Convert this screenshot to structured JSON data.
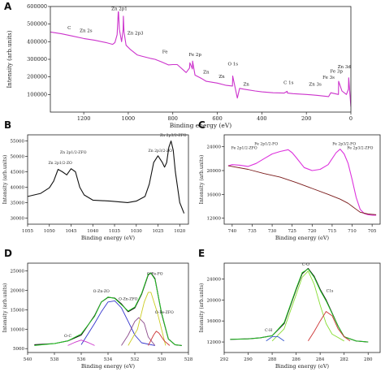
{
  "chart_data": [
    {
      "panel": "A",
      "type": "line",
      "xlabel": "Binding energy (eV)",
      "ylabel": "Intensity (arb.units)",
      "xlim": [
        1350,
        0
      ],
      "ylim": [
        0,
        600000
      ],
      "xticks": [
        1200,
        1000,
        800,
        600,
        400,
        200,
        0
      ],
      "yticks": [
        100000,
        200000,
        300000,
        400000,
        500000,
        600000
      ],
      "color": "#cc33cc",
      "x": [
        1350,
        1300,
        1250,
        1200,
        1150,
        1100,
        1070,
        1060,
        1050,
        1045,
        1044,
        1040,
        1030,
        1023,
        1022,
        1019,
        1010,
        990,
        960,
        940,
        900,
        880,
        850,
        820,
        800,
        780,
        740,
        725,
        723,
        712,
        711,
        700,
        670,
        650,
        600,
        560,
        532,
        531,
        510,
        500,
        480,
        430,
        400,
        350,
        300,
        286,
        285,
        260,
        200,
        150,
        100,
        90,
        56,
        55,
        40,
        20,
        11,
        10,
        0
      ],
      "y": [
        455000,
        445000,
        432000,
        418000,
        408000,
        395000,
        385000,
        395000,
        440000,
        570000,
        570000,
        470000,
        400000,
        470000,
        545000,
        455000,
        380000,
        355000,
        325000,
        318000,
        305000,
        300000,
        285000,
        268000,
        270000,
        270000,
        225000,
        250000,
        280000,
        245000,
        290000,
        210000,
        190000,
        175000,
        165000,
        152000,
        148000,
        205000,
        80000,
        135000,
        130000,
        120000,
        115000,
        110000,
        108000,
        118000,
        108000,
        105000,
        100000,
        95000,
        88000,
        110000,
        100000,
        175000,
        120000,
        100000,
        130000,
        195000,
        30000
      ],
      "annotations": [
        {
          "text": "C",
          "x": 1265,
          "y": 470000
        },
        {
          "text": "Zn 2s",
          "x": 1190,
          "y": 455000
        },
        {
          "text": "Zn 2p1",
          "x": 1040,
          "y": 580000
        },
        {
          "text": "Zn 2p3",
          "x": 968,
          "y": 440000
        },
        {
          "text": "Fe",
          "x": 835,
          "y": 335000
        },
        {
          "text": "Fe 2p",
          "x": 700,
          "y": 318000
        },
        {
          "text": "Zn",
          "x": 650,
          "y": 220000
        },
        {
          "text": "Zn",
          "x": 580,
          "y": 195000
        },
        {
          "text": "O 1s",
          "x": 530,
          "y": 265000
        },
        {
          "text": "Zn",
          "x": 470,
          "y": 150000
        },
        {
          "text": "C 1s",
          "x": 280,
          "y": 160000
        },
        {
          "text": "Zn 3s",
          "x": 160,
          "y": 150000
        },
        {
          "text": "Fe 3s",
          "x": 100,
          "y": 190000
        },
        {
          "text": "Zn 3d",
          "x": 30,
          "y": 250000
        },
        {
          "text": "Fe 3p",
          "x": 65,
          "y": 225000
        }
      ]
    },
    {
      "panel": "B",
      "type": "line",
      "xlabel": "Binding energy (eV)",
      "ylabel": "Intensity (arb.units)",
      "xlim": [
        1055,
        1018
      ],
      "ylim": [
        28000,
        57000
      ],
      "xticks": [
        1055,
        1050,
        1045,
        1040,
        1035,
        1030,
        1025,
        1020
      ],
      "yticks": [
        30000,
        35000,
        40000,
        45000,
        50000,
        55000
      ],
      "color": "#111111",
      "x": [
        1055,
        1052,
        1050,
        1049,
        1048,
        1047,
        1046,
        1045,
        1044,
        1043,
        1042,
        1040,
        1036,
        1032,
        1030,
        1028,
        1027,
        1026,
        1025,
        1024,
        1023.5,
        1023,
        1022.5,
        1022,
        1021.5,
        1021,
        1020,
        1019
      ],
      "y": [
        37000,
        38000,
        39800,
        42000,
        45800,
        45000,
        44000,
        46000,
        45000,
        40000,
        37500,
        35800,
        35500,
        35000,
        35500,
        37000,
        41000,
        48000,
        50200,
        48000,
        46500,
        48000,
        53000,
        55000,
        52000,
        45000,
        35000,
        31500
      ],
      "annotations": [
        {
          "text": "Zn 2p1/2-ZO",
          "x": 1047.5,
          "y": 47500
        },
        {
          "text": "Zn 2p1/2-ZFO",
          "x": 1044.5,
          "y": 51000
        },
        {
          "text": "Zn 2p3/2-ZO",
          "x": 1024.5,
          "y": 51500
        },
        {
          "text": "Zn 2p3/2-ZFO",
          "x": 1021.5,
          "y": 56500
        }
      ]
    },
    {
      "panel": "C",
      "type": "line",
      "xlabel": "Binding energy (eV)",
      "ylabel": "Intensity (arb.units)",
      "xlim": [
        742,
        703
      ],
      "ylim": [
        11000,
        26000
      ],
      "xticks": [
        740,
        735,
        730,
        725,
        720,
        715,
        710,
        705
      ],
      "yticks": [
        12000,
        16000,
        20000,
        24000
      ],
      "series": [
        {
          "color": "#dd33dd",
          "x": [
            741,
            740,
            738,
            736,
            734,
            732,
            730,
            728,
            726,
            725,
            724,
            722,
            720,
            718,
            716,
            714,
            713,
            712,
            711,
            710,
            709,
            708,
            707,
            706,
            705,
            704
          ],
          "y": [
            20800,
            21000,
            20900,
            20700,
            21200,
            22000,
            22800,
            23200,
            23500,
            23000,
            22200,
            20500,
            20000,
            20200,
            21000,
            23000,
            23600,
            22800,
            21200,
            18500,
            15500,
            13500,
            12800,
            12600,
            12500,
            12500
          ]
        },
        {
          "color": "#7a1a1a",
          "x": [
            741,
            736,
            732,
            728,
            724,
            720,
            716,
            713,
            711,
            710,
            709,
            708,
            706,
            704
          ],
          "y": [
            20800,
            20200,
            19500,
            18900,
            18000,
            17000,
            16000,
            15200,
            14500,
            14000,
            13500,
            13000,
            12700,
            12600
          ]
        }
      ],
      "annotations": [
        {
          "text": "Fe 2p1/2-ZFO",
          "x": 737,
          "y": 23600
        },
        {
          "text": "Fe 2p1/2-FO",
          "x": 731.5,
          "y": 24300
        },
        {
          "text": "Fe 2p3/2-FO",
          "x": 712,
          "y": 24300
        },
        {
          "text": "Fe 2p3/2-ZFO",
          "x": 708,
          "y": 23600
        }
      ]
    },
    {
      "panel": "D",
      "type": "line",
      "xlabel": "Binding energy (eV)",
      "ylabel": "Intensity (arb.units)",
      "xlim": [
        540,
        528
      ],
      "ylim": [
        4000,
        27000
      ],
      "xticks": [
        540,
        538,
        536,
        534,
        532,
        530,
        528
      ],
      "yticks": [
        5000,
        10000,
        15000,
        20000,
        25000
      ],
      "series": [
        {
          "color": "#111111",
          "x": [
            539.5,
            538,
            537,
            536,
            535,
            534.5,
            534,
            533.5,
            533,
            532.5,
            532,
            531.5,
            531,
            530.8,
            530.5,
            530,
            529.5,
            529,
            528.5
          ],
          "y": [
            6000,
            6300,
            7000,
            8500,
            13500,
            17000,
            18200,
            18000,
            16500,
            14500,
            15500,
            19000,
            24000,
            24500,
            23000,
            14000,
            7500,
            6000,
            5800
          ]
        },
        {
          "color": "#22cc22",
          "x": [
            539.5,
            538,
            537,
            536,
            535,
            534.5,
            534,
            533.5,
            533,
            532.5,
            532,
            531.5,
            531,
            530.8,
            530.5,
            530,
            529.5,
            529,
            528.5
          ],
          "y": [
            5800,
            6300,
            7000,
            8800,
            13300,
            17000,
            18300,
            17900,
            16300,
            14700,
            15700,
            19200,
            24200,
            24400,
            22800,
            14200,
            7500,
            6000,
            5800
          ]
        },
        {
          "color": "#3333cc",
          "x": [
            536,
            535,
            534.5,
            534,
            533.5,
            533,
            532.5,
            532,
            531.5,
            530.5
          ],
          "y": [
            6000,
            11500,
            14500,
            17000,
            17300,
            15500,
            12000,
            8500,
            6500,
            5800
          ]
        },
        {
          "color": "#cc33cc",
          "x": [
            537,
            536.5,
            536,
            535.5,
            535
          ],
          "y": [
            5800,
            6600,
            7200,
            6600,
            5800
          ]
        },
        {
          "color": "#8b4a8b",
          "x": [
            533,
            532.5,
            532,
            531.7,
            531.3,
            531,
            530.5
          ],
          "y": [
            5800,
            8500,
            12000,
            13000,
            11500,
            8000,
            5800
          ]
        },
        {
          "color": "#cccc22",
          "x": [
            532.5,
            531.8,
            531.3,
            531,
            530.8,
            530.3,
            529.7
          ],
          "y": [
            5800,
            10000,
            17000,
            19500,
            19500,
            14000,
            5800
          ]
        },
        {
          "color": "#cc3333",
          "x": [
            531,
            530.6,
            530.4,
            530.2,
            529.8,
            529.4
          ],
          "y": [
            5800,
            8500,
            9500,
            9000,
            7000,
            5800
          ]
        }
      ],
      "annotations": [
        {
          "text": "O-C",
          "x": 537,
          "y": 8000
        },
        {
          "text": "O-Zn-ZO",
          "x": 534.5,
          "y": 19500
        },
        {
          "text": "O-Zn-ZFO",
          "x": 532.5,
          "y": 17500
        },
        {
          "text": "O-Fe-FO",
          "x": 530.5,
          "y": 24000
        },
        {
          "text": "O-Fe-ZFO",
          "x": 529.8,
          "y": 14000
        }
      ]
    },
    {
      "panel": "E",
      "type": "line",
      "xlabel": "Binding energy (eV)",
      "ylabel": "Intensity (arb.units)",
      "xlim": [
        292,
        279
      ],
      "ylim": [
        10000,
        27000
      ],
      "xticks": [
        292,
        290,
        288,
        286,
        284,
        282,
        280
      ],
      "yticks": [
        12000,
        16000,
        20000,
        24000
      ],
      "series": [
        {
          "color": "#111111",
          "x": [
            291.5,
            290,
            289,
            288,
            287,
            286,
            285.5,
            285,
            284.5,
            284,
            283.5,
            283,
            282.5,
            282,
            281,
            280
          ],
          "y": [
            12500,
            12600,
            12800,
            13200,
            15500,
            22000,
            25000,
            26000,
            24500,
            22000,
            20000,
            17500,
            15000,
            13000,
            12200,
            12000
          ]
        },
        {
          "color": "#22cc22",
          "x": [
            291.5,
            290,
            289,
            288,
            287,
            286,
            285.5,
            285,
            284.5,
            284,
            283.5,
            283,
            282.5,
            282,
            281,
            280
          ],
          "y": [
            12500,
            12600,
            12800,
            13200,
            15700,
            22200,
            25200,
            25900,
            24300,
            21800,
            19800,
            17400,
            15000,
            13000,
            12200,
            12000
          ]
        },
        {
          "color": "#88dd33",
          "x": [
            288,
            287,
            286,
            285.5,
            285,
            284.5,
            284,
            283.5,
            283,
            282
          ],
          "y": [
            12200,
            14500,
            21000,
            24300,
            25500,
            23000,
            19000,
            15500,
            13500,
            12200
          ]
        },
        {
          "color": "#cc3333",
          "x": [
            285,
            284.5,
            284,
            283.5,
            283,
            282.5,
            282,
            281.5
          ],
          "y": [
            12200,
            14000,
            16000,
            17800,
            17000,
            14500,
            13000,
            12200
          ]
        },
        {
          "color": "#3355cc",
          "x": [
            288.5,
            288,
            287.5,
            287
          ],
          "y": [
            12200,
            13000,
            13000,
            12200
          ]
        }
      ],
      "annotations": [
        {
          "text": "C-O",
          "x": 285.2,
          "y": 26500
        },
        {
          "text": "C1s",
          "x": 283.2,
          "y": 21500
        },
        {
          "text": "C-H",
          "x": 288.3,
          "y": 14000
        }
      ]
    }
  ],
  "panel_labels": [
    "A",
    "B",
    "C",
    "D",
    "E"
  ]
}
